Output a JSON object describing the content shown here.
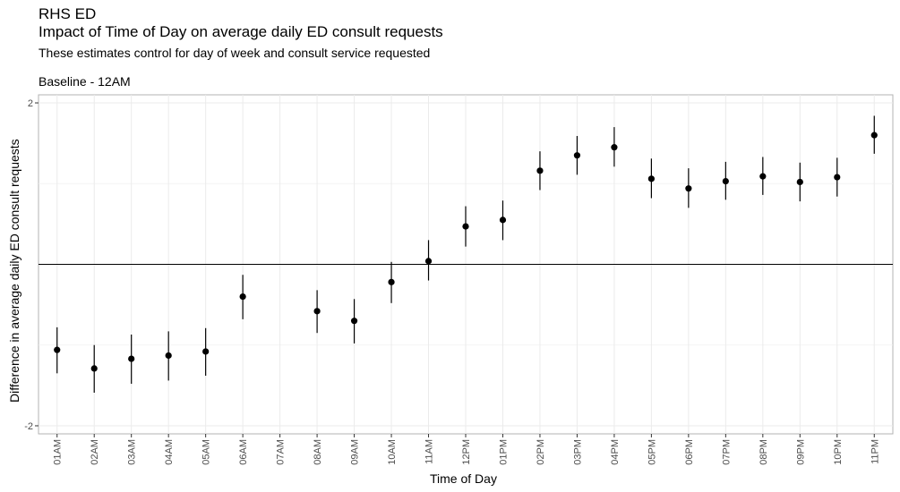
{
  "chart_data": {
    "type": "scatter",
    "subtype": "point-range",
    "title": "RHS ED",
    "subtitle_main": "Impact of Time of Day on average daily ED consult requests",
    "subtitle": "These estimates control for day of week and consult service requested",
    "caption": "Baseline - 12AM",
    "xlabel": "Time of Day",
    "ylabel": "Difference in average daily ED consult requests",
    "ylim": [
      -2.1,
      2.1
    ],
    "yticks": [
      -2,
      2
    ],
    "reference_line": 0,
    "grid": true,
    "categories": [
      "01AM",
      "02AM",
      "03AM",
      "04AM",
      "05AM",
      "06AM",
      "07AM",
      "08AM",
      "09AM",
      "10AM",
      "11AM",
      "12PM",
      "01PM",
      "02PM",
      "03PM",
      "04PM",
      "05PM",
      "06PM",
      "07PM",
      "08PM",
      "09PM",
      "10PM",
      "11PM"
    ],
    "estimates": [
      -1.06,
      -1.29,
      -1.17,
      -1.13,
      -1.08,
      -0.4,
      null,
      -0.58,
      -0.7,
      -0.22,
      0.04,
      0.47,
      0.55,
      1.16,
      1.35,
      1.45,
      1.06,
      0.94,
      1.03,
      1.09,
      1.02,
      1.08,
      1.6
    ],
    "lower": [
      -1.35,
      -1.59,
      -1.48,
      -1.44,
      -1.38,
      -0.68,
      null,
      -0.85,
      -0.98,
      -0.48,
      -0.2,
      0.22,
      0.3,
      0.92,
      1.11,
      1.21,
      0.82,
      0.7,
      0.8,
      0.86,
      0.78,
      0.84,
      1.37
    ],
    "upper": [
      -0.78,
      -1.0,
      -0.87,
      -0.83,
      -0.79,
      -0.13,
      null,
      -0.32,
      -0.43,
      0.03,
      0.3,
      0.72,
      0.79,
      1.4,
      1.59,
      1.7,
      1.31,
      1.19,
      1.27,
      1.33,
      1.26,
      1.32,
      1.84
    ]
  }
}
